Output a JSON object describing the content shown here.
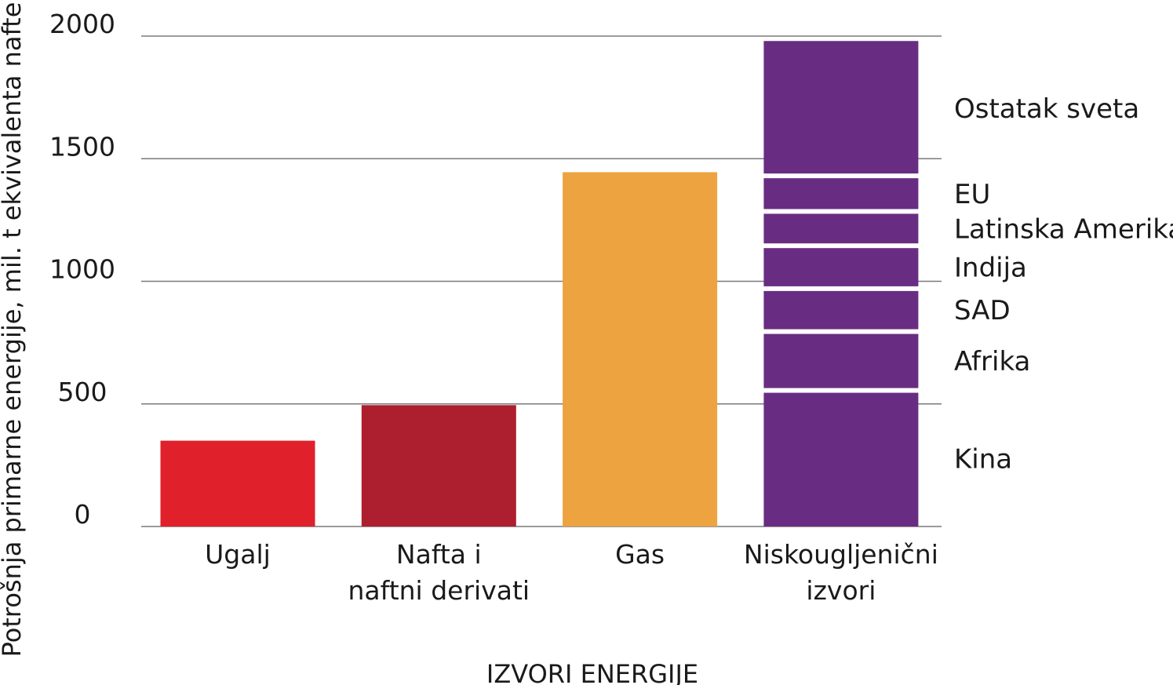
{
  "chart_data": {
    "type": "bar",
    "title": "",
    "xlabel": "IZVORI ENERGIJE",
    "ylabel": "Potrošnja primarne energije, mil. t ekvivalenta nafte",
    "ylim": [
      0,
      2000
    ],
    "yticks": [
      0,
      500,
      1000,
      1500,
      2000
    ],
    "yticks_text": [
      "0",
      "500",
      "1000",
      "1500",
      "2000"
    ],
    "grid": true,
    "categories": [
      {
        "lines": [
          "Ugalj"
        ],
        "value": 350,
        "color": "#e0212b"
      },
      {
        "lines": [
          "Nafta i",
          "naftni derivati"
        ],
        "value": 495,
        "color": "#ad1f2e"
      },
      {
        "lines": [
          "Gas"
        ],
        "value": 1445,
        "color": "#eca340"
      },
      {
        "lines": [
          "Niskougljenični",
          "izvori"
        ],
        "value": 1980,
        "color": "#682d82",
        "stacked": true
      }
    ],
    "stacked_breakdown": [
      {
        "name": "Kina",
        "start": 0,
        "end": 555
      },
      {
        "name": "Afrika",
        "start": 555,
        "end": 795
      },
      {
        "name": "SAD",
        "start": 795,
        "end": 970
      },
      {
        "name": "Indija",
        "start": 970,
        "end": 1145
      },
      {
        "name": "Latinska Amerika",
        "start": 1145,
        "end": 1285
      },
      {
        "name": "EU",
        "start": 1285,
        "end": 1430
      },
      {
        "name": "Ostatak sveta",
        "start": 1430,
        "end": 1980
      }
    ]
  }
}
